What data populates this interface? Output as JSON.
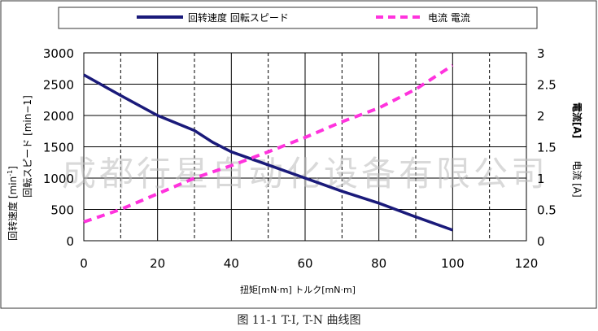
{
  "chart_data": {
    "type": "line",
    "caption": "图 11-1 T-I, T-N  曲线图",
    "watermark": "成都行星自动化设备有限公司",
    "xlabel": "扭矩[mN·m]  トルク[mN·m]",
    "ylabel_left_line1": "回転スピード [min−1]",
    "ylabel_left_line2": "回转速度 [min",
    "ylabel_left_sup": "-1",
    "ylabel_left_tail": "]",
    "ylabel_right_line1": "電流[A]",
    "ylabel_right_line2": "电流 [A]",
    "xlim": [
      0,
      120
    ],
    "ylim_left": [
      0,
      3000
    ],
    "ylim_right": [
      0,
      3
    ],
    "x_ticks": [
      "0",
      "20",
      "40",
      "60",
      "80",
      "100",
      "120"
    ],
    "x_tick_values": [
      0,
      20,
      40,
      60,
      80,
      100,
      120
    ],
    "y_left_ticks": [
      "0",
      "500",
      "1000",
      "1500",
      "2000",
      "2500",
      "3000"
    ],
    "y_left_tick_values": [
      0,
      500,
      1000,
      1500,
      2000,
      2500,
      3000
    ],
    "y_right_ticks": [
      "0",
      "0.5",
      "1",
      "1.5",
      "2",
      "2.5",
      "3"
    ],
    "y_right_tick_values": [
      0,
      0.5,
      1,
      1.5,
      2,
      2.5,
      3
    ],
    "vertical_dashed_gridlines": [
      10,
      30,
      50,
      70,
      90,
      110
    ],
    "grid": true,
    "legend_position": "top",
    "series": [
      {
        "name": "回转速度 回転スピード",
        "axis": "left",
        "color": "#1a1a7a",
        "style": "solid",
        "x": [
          0,
          10,
          20,
          30,
          35,
          40,
          50,
          60,
          70,
          80,
          90,
          100
        ],
        "y": [
          2650,
          2320,
          2000,
          1760,
          1570,
          1420,
          1210,
          1000,
          790,
          600,
          380,
          170
        ]
      },
      {
        "name": "电流 電流",
        "axis": "right",
        "color": "#ff33dd",
        "style": "dashed",
        "x": [
          0,
          10,
          20,
          30,
          40,
          50,
          60,
          70,
          80,
          90,
          100
        ],
        "y": [
          0.3,
          0.5,
          0.75,
          1.0,
          1.2,
          1.42,
          1.65,
          1.9,
          2.12,
          2.42,
          2.8
        ]
      }
    ]
  }
}
